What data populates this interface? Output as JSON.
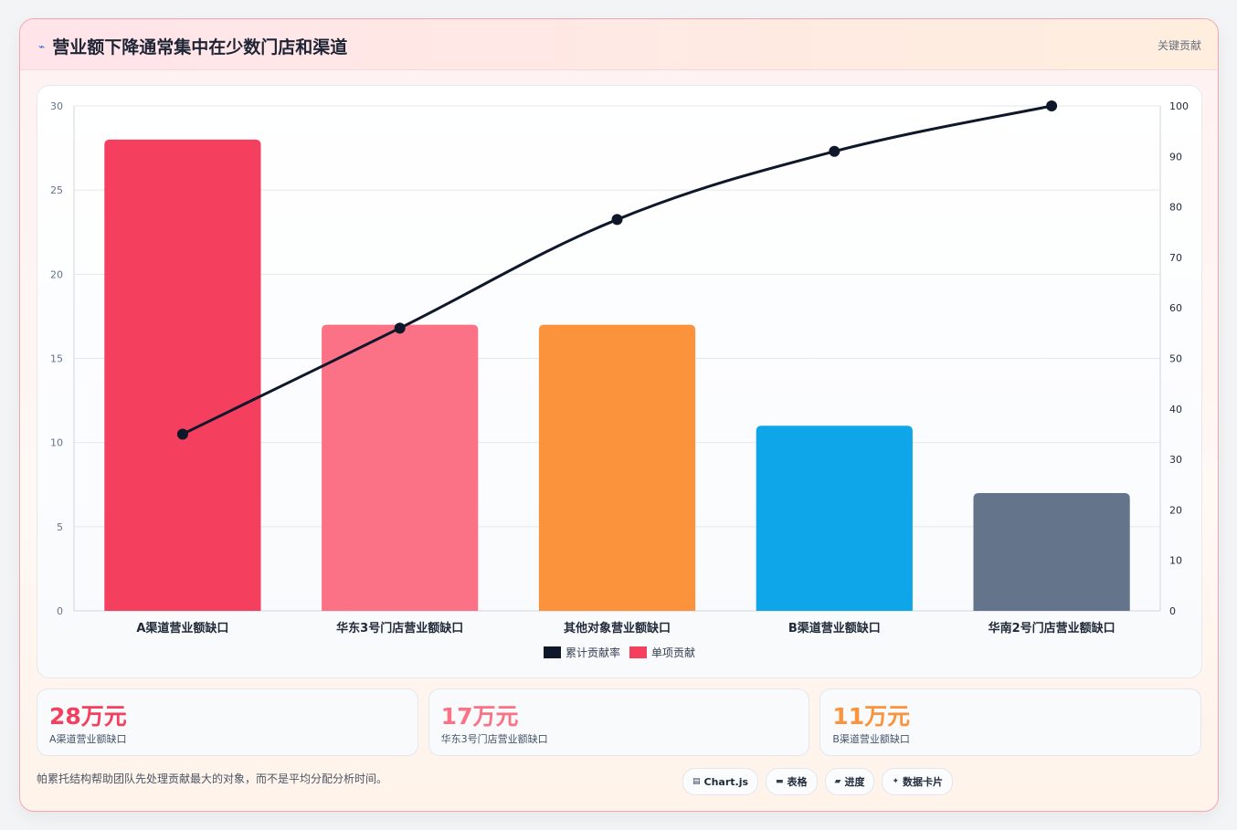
{
  "header": {
    "title": "营业额下降通常集中在少数门店和渠道",
    "tag": "关键贡献"
  },
  "colors": {
    "bar_1": "#f43f5e",
    "bar_2": "#fb7185",
    "bar_3": "#fb923c",
    "bar_4": "#0ea5e9",
    "bar_5": "#64748b",
    "line": "#0f172a"
  },
  "chart_data": {
    "type": "bar",
    "categories": [
      "A渠道营业额缺口",
      "华东3号门店营业额缺口",
      "其他对象营业额缺口",
      "B渠道营业额缺口",
      "华南2号门店营业额缺口"
    ],
    "series": [
      {
        "name": "单项贡献",
        "type": "bar",
        "axis": "left",
        "values": [
          28,
          17,
          17,
          11,
          7
        ]
      },
      {
        "name": "累计贡献率",
        "type": "line",
        "axis": "right",
        "values": [
          35,
          56,
          77.5,
          91,
          100
        ]
      }
    ],
    "ylim_left": [
      0,
      30
    ],
    "yticks_left": [
      0,
      5,
      10,
      15,
      20,
      25,
      30
    ],
    "ylim_right": [
      0,
      100
    ],
    "yticks_right": [
      0,
      10,
      20,
      30,
      40,
      50,
      60,
      70,
      80,
      90,
      100
    ],
    "grid": true,
    "legend_position": "bottom"
  },
  "legend": [
    {
      "label": "累计贡献率",
      "color": "#0f172a"
    },
    {
      "label": "单项贡献",
      "color": "#f43f5e"
    }
  ],
  "stats": [
    {
      "value": "28万元",
      "label": "A渠道营业额缺口",
      "color": "#f43f5e"
    },
    {
      "value": "17万元",
      "label": "华东3号门店营业额缺口",
      "color": "#fb7185"
    },
    {
      "value": "11万元",
      "label": "B渠道营业额缺口",
      "color": "#fb923c"
    }
  ],
  "footer": {
    "note": "帕累托结构帮助团队先处理贡献最大的对象，而不是平均分配分析时间。"
  },
  "chips": [
    {
      "icon": "chart-icon",
      "label": "Chart.js"
    },
    {
      "icon": "table-icon",
      "label": "表格"
    },
    {
      "icon": "progress-icon",
      "label": "进度"
    },
    {
      "icon": "card-icon",
      "label": "数据卡片"
    }
  ]
}
